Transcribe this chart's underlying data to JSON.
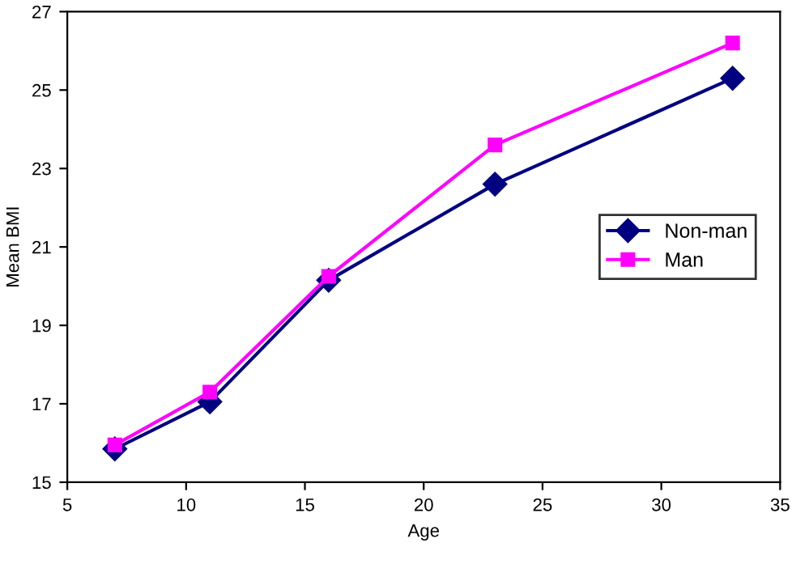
{
  "chart_data": {
    "type": "line",
    "xlabel": "Age",
    "ylabel": "Mean BMI",
    "x": [
      7,
      11,
      16,
      23,
      33
    ],
    "series": [
      {
        "name": "Non-man",
        "color": "#000080",
        "marker": "diamond",
        "values": [
          15.85,
          17.05,
          20.15,
          22.6,
          25.3
        ]
      },
      {
        "name": "Man",
        "color": "#ff00ff",
        "marker": "square",
        "values": [
          15.95,
          17.3,
          20.25,
          23.6,
          26.2
        ]
      }
    ],
    "xlim": [
      5,
      35
    ],
    "xticks": [
      5,
      10,
      15,
      20,
      25,
      30,
      35
    ],
    "ylim": [
      15,
      27
    ],
    "yticks": [
      15,
      17,
      19,
      21,
      23,
      25,
      27
    ],
    "grid": false,
    "legend": "right"
  }
}
